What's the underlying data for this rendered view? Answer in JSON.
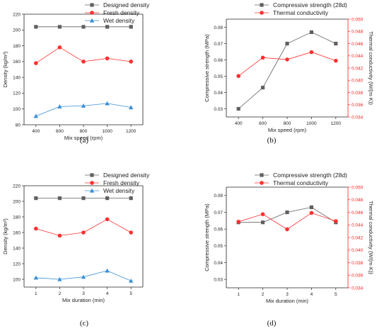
{
  "colors": {
    "gray": "#606060",
    "red": "#ff3030",
    "blue": "#3a8fd8",
    "axis": "#222222",
    "red_axis": "#ff2020"
  },
  "chart_data": [
    {
      "panel": "(a)",
      "type": "line",
      "xlabel": "Mix speed (rpm)",
      "ylabel": "Density (kg/m³)",
      "x": [
        400,
        600,
        800,
        1000,
        1200
      ],
      "xticks": [
        "400",
        "600",
        "800",
        "1000",
        "1200"
      ],
      "ylim": [
        80,
        220
      ],
      "yticks": [
        "80",
        "100",
        "120",
        "140",
        "160",
        "180",
        "200",
        "220"
      ],
      "legend_position": "top-right",
      "series": [
        {
          "name": "Designed density",
          "marker": "square",
          "color": "#606060",
          "values": [
            204,
            204,
            204,
            204,
            204
          ]
        },
        {
          "name": "Fresh density",
          "marker": "circle",
          "color": "#ff3030",
          "values": [
            158,
            178,
            160,
            164,
            160
          ]
        },
        {
          "name": "Wet density",
          "marker": "triangle",
          "color": "#3a8fd8",
          "values": [
            91,
            103,
            104,
            107,
            102
          ]
        }
      ]
    },
    {
      "panel": "(b)",
      "type": "line",
      "xlabel": "Mix speed (rpm)",
      "ylabel": "Compressive strength (MPa)",
      "y2label": "Thermal conductivity (W/(m·K))",
      "x": [
        400,
        600,
        800,
        1000,
        1200
      ],
      "xticks": [
        "400",
        "600",
        "800",
        "1000",
        "1200"
      ],
      "ylim": [
        0.025,
        0.085
      ],
      "yticks": [
        "0.03",
        "0.04",
        "0.05",
        "0.06",
        "0.07",
        "0.08"
      ],
      "y2lim": [
        0.034,
        0.05
      ],
      "y2ticks": [
        "0.034",
        "0.036",
        "0.038",
        "0.040",
        "0.042",
        "0.044",
        "0.046",
        "0.048",
        "0.050"
      ],
      "legend_position": "top",
      "series": [
        {
          "name": "Compressive strength (28d)",
          "marker": "square",
          "color": "#606060",
          "axis": "left",
          "values": [
            0.03,
            0.043,
            0.07,
            0.077,
            0.07
          ]
        },
        {
          "name": "Thermal conductivity",
          "marker": "circle",
          "color": "#ff3030",
          "axis": "right",
          "values": [
            0.0407,
            0.0437,
            0.0434,
            0.0446,
            0.0432
          ]
        }
      ]
    },
    {
      "panel": "(c)",
      "type": "line",
      "xlabel": "Mix duration (min)",
      "ylabel": "Density (kg/m³)",
      "x": [
        1,
        2,
        3,
        4,
        5
      ],
      "xticks": [
        "1",
        "2",
        "3",
        "4",
        "5"
      ],
      "ylim": [
        90,
        220
      ],
      "yticks": [
        "100",
        "120",
        "140",
        "160",
        "180",
        "200",
        "220"
      ],
      "legend_position": "top-right",
      "series": [
        {
          "name": "Designed density",
          "marker": "square",
          "color": "#606060",
          "values": [
            204,
            204,
            204,
            204,
            204
          ]
        },
        {
          "name": "Fresh density",
          "marker": "circle",
          "color": "#ff3030",
          "values": [
            165,
            156,
            160,
            177,
            160
          ]
        },
        {
          "name": "Wet density",
          "marker": "triangle",
          "color": "#3a8fd8",
          "values": [
            102,
            100,
            103,
            111,
            98
          ]
        }
      ]
    },
    {
      "panel": "(d)",
      "type": "line",
      "xlabel": "Mix duration (min)",
      "ylabel": "Compressive strength (MPa)",
      "y2label": "Thermal conductivity (W/(m·K))",
      "x": [
        1,
        2,
        3,
        4,
        5
      ],
      "xticks": [
        "1",
        "2",
        "3",
        "4",
        "5"
      ],
      "ylim": [
        0.025,
        0.085
      ],
      "yticks": [
        "0.03",
        "0.04",
        "0.05",
        "0.06",
        "0.07",
        "0.08"
      ],
      "y2lim": [
        0.034,
        0.05
      ],
      "y2ticks": [
        "0.034",
        "0.036",
        "0.038",
        "0.040",
        "0.042",
        "0.044",
        "0.046",
        "0.048",
        "0.050"
      ],
      "legend_position": "top",
      "series": [
        {
          "name": "Compressive strength (28d)",
          "marker": "square",
          "color": "#606060",
          "axis": "left",
          "values": [
            0.064,
            0.064,
            0.07,
            0.073,
            0.064
          ]
        },
        {
          "name": "Thermal conductivity",
          "marker": "circle",
          "color": "#ff3030",
          "axis": "right",
          "values": [
            0.0445,
            0.0457,
            0.0433,
            0.0459,
            0.0446
          ]
        }
      ]
    }
  ]
}
